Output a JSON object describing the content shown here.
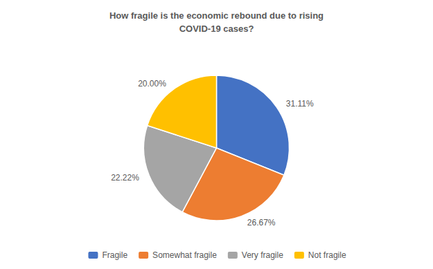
{
  "chart_data": {
    "type": "pie",
    "title": "How fragile is the economic rebound due to rising\nCOVID-19 cases?",
    "categories": [
      "Fragile",
      "Somewhat fragile",
      "Very fragile",
      "Not fragile"
    ],
    "values": [
      31.11,
      26.67,
      22.22,
      20.0
    ],
    "value_labels": [
      "31.11%",
      "26.67%",
      "22.22%",
      "20.00%"
    ],
    "colors": [
      "#4472C4",
      "#ED7D31",
      "#A5A5A5",
      "#FFC000"
    ],
    "data_labels": true,
    "legend": "bottom"
  }
}
